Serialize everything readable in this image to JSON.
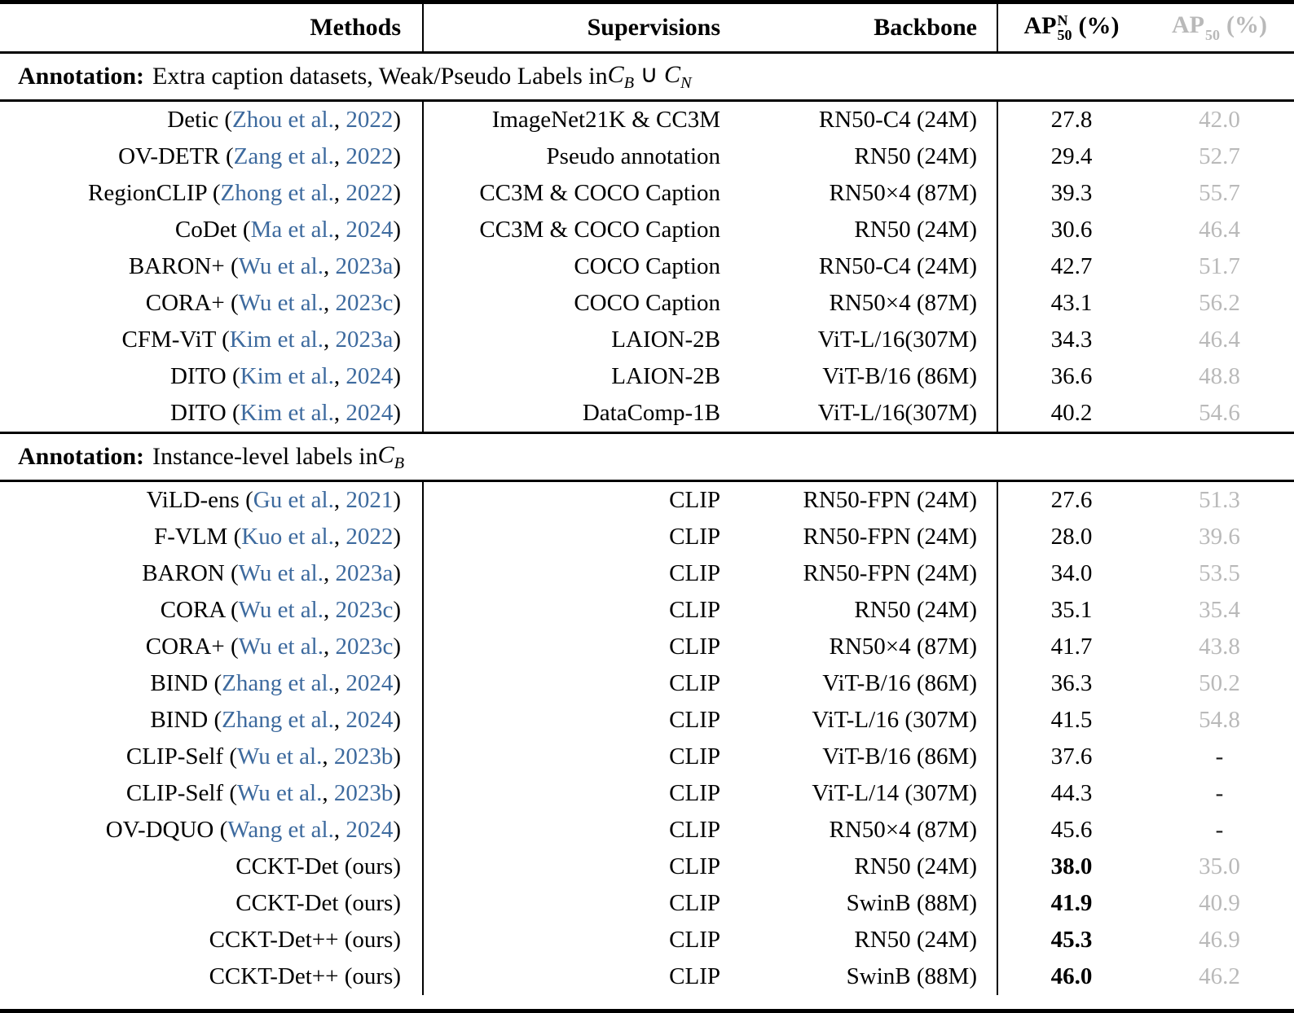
{
  "ui_colors": {
    "citation_blue": "#3d6a9e",
    "muted_gray": "#b9b9b9",
    "rule_black": "#000000",
    "background": "#ffffff"
  },
  "header": {
    "methods": "Methods",
    "supervisions": "Supervisions",
    "backbone": "Backbone",
    "ap_novel": {
      "base": "AP",
      "sup": "N",
      "sub": "50",
      "unit": "(%)"
    },
    "ap_base": {
      "base": "AP",
      "sub": "50",
      "unit": "(%)"
    }
  },
  "sections": [
    {
      "heading": {
        "bold": "Annotation:",
        "text": "Extra caption datasets, Weak/Pseudo Labels in",
        "math": [
          {
            "base": "C",
            "sub": "B"
          },
          {
            "op": "∪"
          },
          {
            "base": "C",
            "sub": "N"
          }
        ]
      },
      "rows": [
        {
          "method": "Detic",
          "cite_author": "Zhou et al.",
          "cite_year": "2022",
          "supervision": "ImageNet21K & CC3M",
          "backbone": "RN50-C4 (24M)",
          "ap_novel": "27.8",
          "ap_base": "42.0",
          "ap_novel_bold": false
        },
        {
          "method": "OV-DETR",
          "cite_author": "Zang et al.",
          "cite_year": "2022",
          "supervision": "Pseudo annotation",
          "backbone": "RN50 (24M)",
          "ap_novel": "29.4",
          "ap_base": "52.7",
          "ap_novel_bold": false
        },
        {
          "method": "RegionCLIP",
          "cite_author": "Zhong et al.",
          "cite_year": "2022",
          "supervision": "CC3M & COCO Caption",
          "backbone": "RN50×4 (87M)",
          "ap_novel": "39.3",
          "ap_base": "55.7",
          "ap_novel_bold": false
        },
        {
          "method": "CoDet",
          "cite_author": "Ma et al.",
          "cite_year": "2024",
          "supervision": "CC3M & COCO Caption",
          "backbone": "RN50 (24M)",
          "ap_novel": "30.6",
          "ap_base": "46.4",
          "ap_novel_bold": false
        },
        {
          "method": "BARON+",
          "cite_author": "Wu et al.",
          "cite_year": "2023a",
          "supervision": "COCO Caption",
          "backbone": "RN50-C4 (24M)",
          "ap_novel": "42.7",
          "ap_base": "51.7",
          "ap_novel_bold": false
        },
        {
          "method": "CORA+",
          "cite_author": "Wu et al.",
          "cite_year": "2023c",
          "supervision": "COCO Caption",
          "backbone": "RN50×4 (87M)",
          "ap_novel": "43.1",
          "ap_base": "56.2",
          "ap_novel_bold": false
        },
        {
          "method": "CFM-ViT",
          "cite_author": "Kim et al.",
          "cite_year": "2023a",
          "supervision": "LAION-2B",
          "backbone": "ViT-L/16(307M)",
          "ap_novel": "34.3",
          "ap_base": "46.4",
          "ap_novel_bold": false
        },
        {
          "method": "DITO",
          "cite_author": "Kim et al.",
          "cite_year": "2024",
          "supervision": "LAION-2B",
          "backbone": "ViT-B/16 (86M)",
          "ap_novel": "36.6",
          "ap_base": "48.8",
          "ap_novel_bold": false
        },
        {
          "method": "DITO",
          "cite_author": "Kim et al.",
          "cite_year": "2024",
          "supervision": "DataComp-1B",
          "backbone": "ViT-L/16(307M)",
          "ap_novel": "40.2",
          "ap_base": "54.6",
          "ap_novel_bold": false
        }
      ]
    },
    {
      "heading": {
        "bold": "Annotation:",
        "text": "Instance-level labels in",
        "math": [
          {
            "base": "C",
            "sub": "B"
          }
        ]
      },
      "rows": [
        {
          "method": "ViLD-ens",
          "cite_author": "Gu et al.",
          "cite_year": "2021",
          "supervision": "CLIP",
          "backbone": "RN50-FPN (24M)",
          "ap_novel": "27.6",
          "ap_base": "51.3",
          "ap_novel_bold": false
        },
        {
          "method": "F-VLM",
          "cite_author": "Kuo et al.",
          "cite_year": "2022",
          "supervision": "CLIP",
          "backbone": "RN50-FPN (24M)",
          "ap_novel": "28.0",
          "ap_base": "39.6",
          "ap_novel_bold": false
        },
        {
          "method": "BARON",
          "cite_author": "Wu et al.",
          "cite_year": "2023a",
          "supervision": "CLIP",
          "backbone": "RN50-FPN (24M)",
          "ap_novel": "34.0",
          "ap_base": "53.5",
          "ap_novel_bold": false
        },
        {
          "method": "CORA",
          "cite_author": "Wu et al.",
          "cite_year": "2023c",
          "supervision": "CLIP",
          "backbone": "RN50 (24M)",
          "ap_novel": "35.1",
          "ap_base": "35.4",
          "ap_novel_bold": false
        },
        {
          "method": "CORA+",
          "cite_author": "Wu et al.",
          "cite_year": "2023c",
          "supervision": "CLIP",
          "backbone": "RN50×4 (87M)",
          "ap_novel": "41.7",
          "ap_base": "43.8",
          "ap_novel_bold": false
        },
        {
          "method": "BIND",
          "cite_author": "Zhang et al.",
          "cite_year": "2024",
          "supervision": "CLIP",
          "backbone": "ViT-B/16 (86M)",
          "ap_novel": "36.3",
          "ap_base": "50.2",
          "ap_novel_bold": false
        },
        {
          "method": "BIND",
          "cite_author": "Zhang et al.",
          "cite_year": "2024",
          "supervision": "CLIP",
          "backbone": "ViT-L/16 (307M)",
          "ap_novel": "41.5",
          "ap_base": "54.8",
          "ap_novel_bold": false
        },
        {
          "method": "CLIP-Self",
          "cite_author": "Wu et al.",
          "cite_year": "2023b",
          "supervision": "CLIP",
          "backbone": "ViT-B/16 (86M)",
          "ap_novel": "37.6",
          "ap_base": "-",
          "ap_novel_bold": false
        },
        {
          "method": "CLIP-Self",
          "cite_author": "Wu et al.",
          "cite_year": "2023b",
          "supervision": "CLIP",
          "backbone": "ViT-L/14 (307M)",
          "ap_novel": "44.3",
          "ap_base": "-",
          "ap_novel_bold": false
        },
        {
          "method": "OV-DQUO",
          "cite_author": "Wang et al.",
          "cite_year": "2024",
          "supervision": "CLIP",
          "backbone": "RN50×4 (87M)",
          "ap_novel": "45.6",
          "ap_base": "-",
          "ap_novel_bold": false
        },
        {
          "method": "CCKT-Det (ours)",
          "cite_author": null,
          "cite_year": null,
          "supervision": "CLIP",
          "backbone": "RN50 (24M)",
          "ap_novel": "38.0",
          "ap_base": "35.0",
          "ap_novel_bold": true
        },
        {
          "method": "CCKT-Det (ours)",
          "cite_author": null,
          "cite_year": null,
          "supervision": "CLIP",
          "backbone": "SwinB (88M)",
          "ap_novel": "41.9",
          "ap_base": "40.9",
          "ap_novel_bold": true
        },
        {
          "method": "CCKT-Det++ (ours)",
          "cite_author": null,
          "cite_year": null,
          "supervision": "CLIP",
          "backbone": "RN50 (24M)",
          "ap_novel": "45.3",
          "ap_base": "46.9",
          "ap_novel_bold": true
        },
        {
          "method": "CCKT-Det++ (ours)",
          "cite_author": null,
          "cite_year": null,
          "supervision": "CLIP",
          "backbone": "SwinB (88M)",
          "ap_novel": "46.0",
          "ap_base": "46.2",
          "ap_novel_bold": true
        }
      ]
    }
  ]
}
